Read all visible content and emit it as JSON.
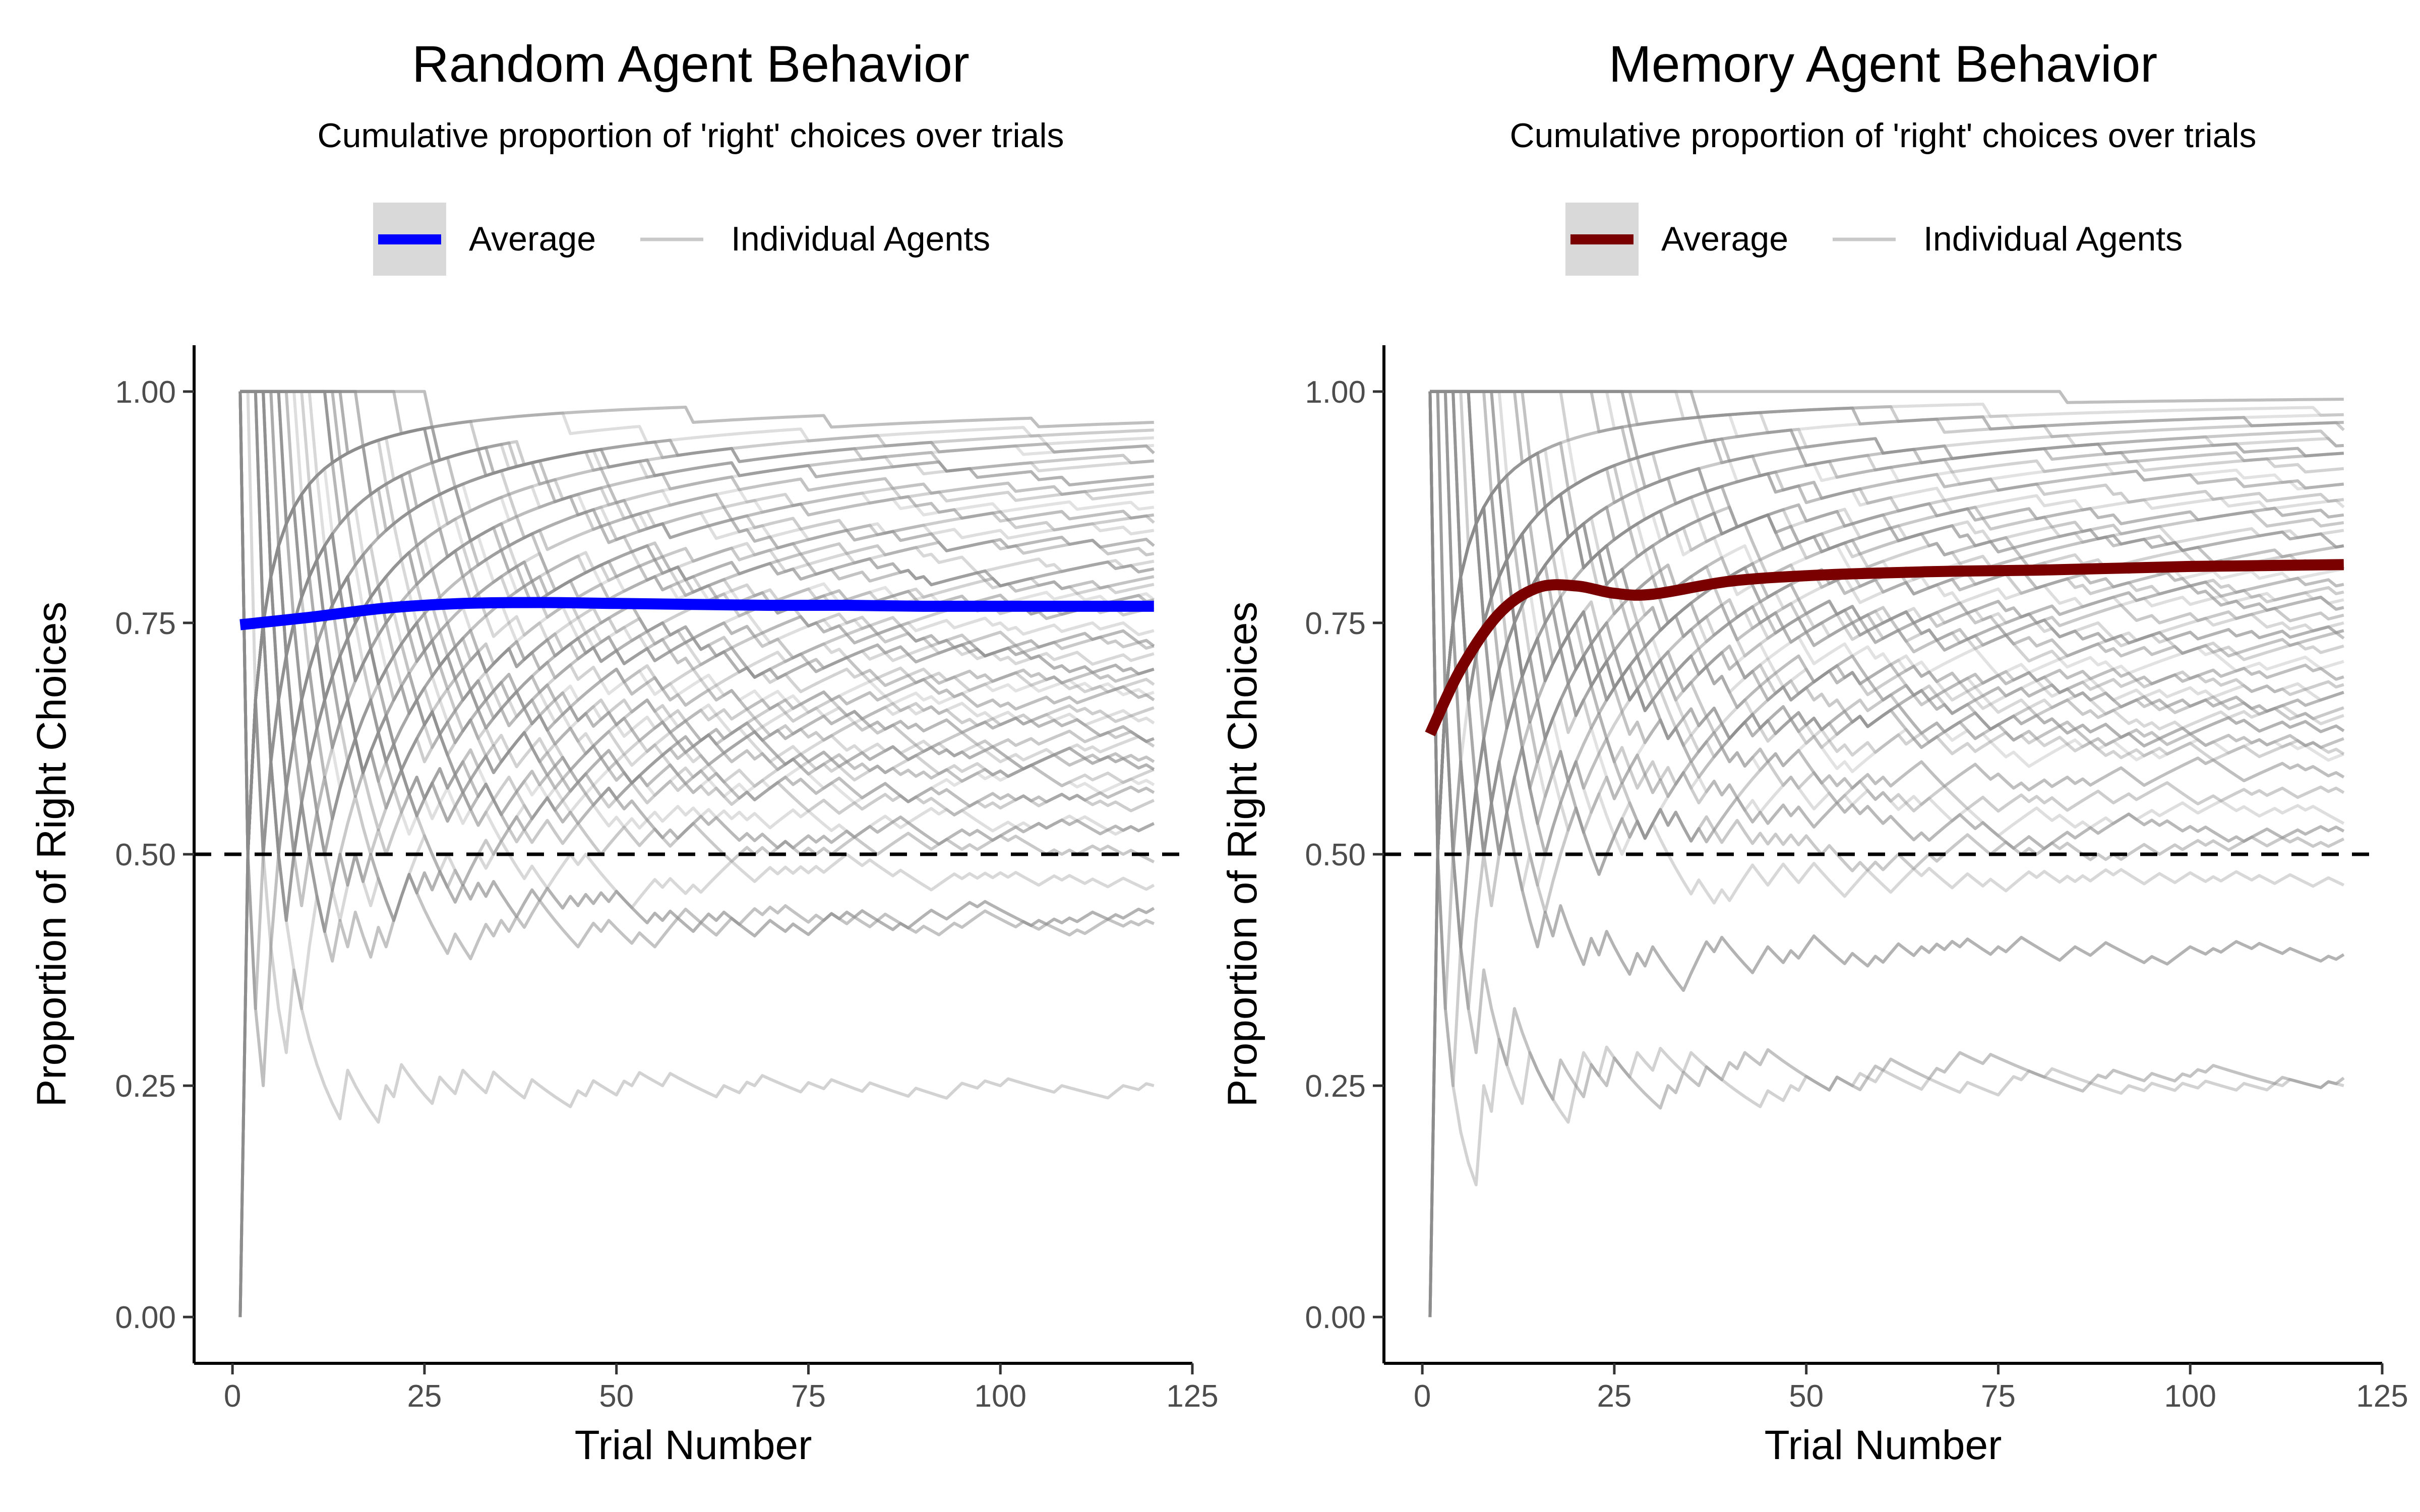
{
  "chart_data": [
    {
      "type": "line",
      "title": "Random Agent Behavior",
      "subtitle": "Cumulative proportion of 'right' choices over trials",
      "xlabel": "Trial Number",
      "ylabel": "Proportion of Right Choices",
      "xlim": [
        -5,
        125
      ],
      "ylim": [
        -0.05,
        1.05
      ],
      "x_ticks": [
        0,
        25,
        50,
        75,
        100,
        125
      ],
      "y_ticks": [
        0.0,
        0.25,
        0.5,
        0.75,
        1.0
      ],
      "x_tick_labels": [
        "0",
        "25",
        "50",
        "75",
        "100",
        "125"
      ],
      "y_tick_labels": [
        "0.00",
        "0.25",
        "0.50",
        "0.75",
        "1.00"
      ],
      "reference_line": {
        "y": 0.5,
        "style": "dashed",
        "color": "#000000"
      },
      "legend": {
        "position": "top",
        "entries": [
          "Average",
          "Individual Agents"
        ]
      },
      "grid": false,
      "series": [
        {
          "name": "Average",
          "color": "#0000ff",
          "x": [
            1,
            10,
            20,
            30,
            40,
            50,
            60,
            70,
            80,
            90,
            100,
            110,
            120
          ],
          "y": [
            0.748,
            0.756,
            0.766,
            0.771,
            0.772,
            0.771,
            0.77,
            0.769,
            0.769,
            0.768,
            0.768,
            0.768,
            0.768
          ]
        },
        {
          "name": "Individual Agents",
          "color": "#8c8c8c",
          "count": 50,
          "x_range": [
            1,
            120
          ],
          "final_values": [
            0.97,
            0.96,
            0.95,
            0.94,
            0.93,
            0.92,
            0.91,
            0.9,
            0.89,
            0.88,
            0.87,
            0.86,
            0.85,
            0.84,
            0.83,
            0.82,
            0.81,
            0.8,
            0.79,
            0.78,
            0.77,
            0.76,
            0.75,
            0.74,
            0.73,
            0.72,
            0.71,
            0.7,
            0.69,
            0.68,
            0.67,
            0.66,
            0.65,
            0.64,
            0.63,
            0.62,
            0.61,
            0.6,
            0.59,
            0.58,
            0.57,
            0.56,
            0.55,
            0.53,
            0.52,
            0.5,
            0.47,
            0.43,
            0.42,
            0.24
          ]
        }
      ]
    },
    {
      "type": "line",
      "title": "Memory Agent Behavior",
      "subtitle": "Cumulative proportion of 'right' choices over trials",
      "xlabel": "Trial Number",
      "ylabel": "Proportion of Right Choices",
      "xlim": [
        -5,
        125
      ],
      "ylim": [
        -0.05,
        1.05
      ],
      "x_ticks": [
        0,
        25,
        50,
        75,
        100,
        125
      ],
      "y_ticks": [
        0.0,
        0.25,
        0.5,
        0.75,
        1.0
      ],
      "x_tick_labels": [
        "0",
        "25",
        "50",
        "75",
        "100",
        "125"
      ],
      "y_tick_labels": [
        "0.00",
        "0.25",
        "0.50",
        "0.75",
        "1.00"
      ],
      "reference_line": {
        "y": 0.5,
        "style": "dashed",
        "color": "#000000"
      },
      "legend": {
        "position": "top",
        "entries": [
          "Average",
          "Individual Agents"
        ]
      },
      "grid": false,
      "series": [
        {
          "name": "Average",
          "color": "#7a0000",
          "x": [
            1,
            5,
            10,
            15,
            20,
            25,
            30,
            40,
            50,
            60,
            70,
            80,
            90,
            100,
            110,
            120
          ],
          "y": [
            0.63,
            0.7,
            0.76,
            0.788,
            0.79,
            0.782,
            0.781,
            0.795,
            0.801,
            0.804,
            0.806,
            0.807,
            0.809,
            0.811,
            0.812,
            0.813
          ]
        },
        {
          "name": "Individual Agents",
          "color": "#8c8c8c",
          "count": 50,
          "x_range": [
            1,
            120
          ],
          "final_values": [
            1.0,
            0.99,
            0.98,
            0.97,
            0.96,
            0.95,
            0.94,
            0.93,
            0.92,
            0.91,
            0.9,
            0.89,
            0.88,
            0.87,
            0.86,
            0.85,
            0.84,
            0.83,
            0.82,
            0.81,
            0.8,
            0.79,
            0.78,
            0.77,
            0.76,
            0.75,
            0.74,
            0.73,
            0.72,
            0.71,
            0.7,
            0.69,
            0.68,
            0.67,
            0.66,
            0.65,
            0.64,
            0.63,
            0.62,
            0.61,
            0.6,
            0.58,
            0.56,
            0.54,
            0.52,
            0.5,
            0.47,
            0.39,
            0.26,
            0.25
          ]
        }
      ]
    }
  ]
}
